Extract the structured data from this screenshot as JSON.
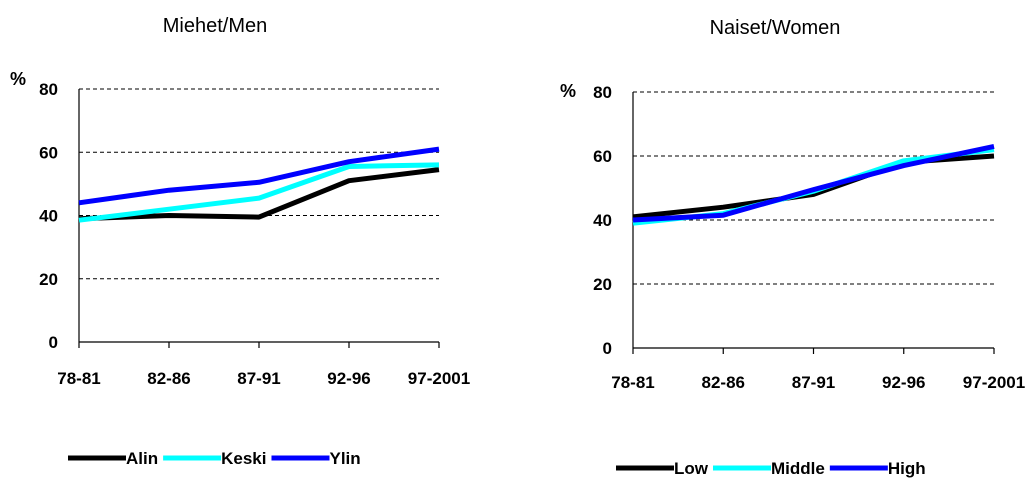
{
  "chart_data": [
    {
      "type": "line",
      "title": "Miehet/Men",
      "ylabel": "%",
      "xlabel": "",
      "categories": [
        "78-81",
        "82-86",
        "87-91",
        "92-96",
        "97-2001"
      ],
      "ylim": [
        0,
        80
      ],
      "yticks": [
        0,
        20,
        40,
        60,
        80
      ],
      "grid": true,
      "legend_position": "bottom",
      "series": [
        {
          "name": "Alin",
          "color": "#000000",
          "values": [
            39,
            40,
            39.5,
            51,
            54.5
          ]
        },
        {
          "name": "Keski",
          "color": "#00FFFF",
          "values": [
            38.5,
            42,
            45.5,
            55.5,
            56
          ]
        },
        {
          "name": "Ylin",
          "color": "#0000FF",
          "values": [
            44,
            48,
            50.5,
            57,
            61
          ]
        }
      ]
    },
    {
      "type": "line",
      "title": "Naiset/Women",
      "ylabel": "%",
      "xlabel": "",
      "categories": [
        "78-81",
        "82-86",
        "87-91",
        "92-96",
        "97-2001"
      ],
      "ylim": [
        0,
        80
      ],
      "yticks": [
        0,
        20,
        40,
        60,
        80
      ],
      "grid": true,
      "legend_position": "bottom",
      "series": [
        {
          "name": "Low",
          "color": "#000000",
          "values": [
            41,
            44,
            48,
            58,
            60
          ]
        },
        {
          "name": "Middle",
          "color": "#00FFFF",
          "values": [
            39,
            42,
            49,
            58.5,
            62
          ]
        },
        {
          "name": "High",
          "color": "#0000FF",
          "values": [
            40,
            41.5,
            49.5,
            57,
            63
          ]
        }
      ]
    }
  ]
}
